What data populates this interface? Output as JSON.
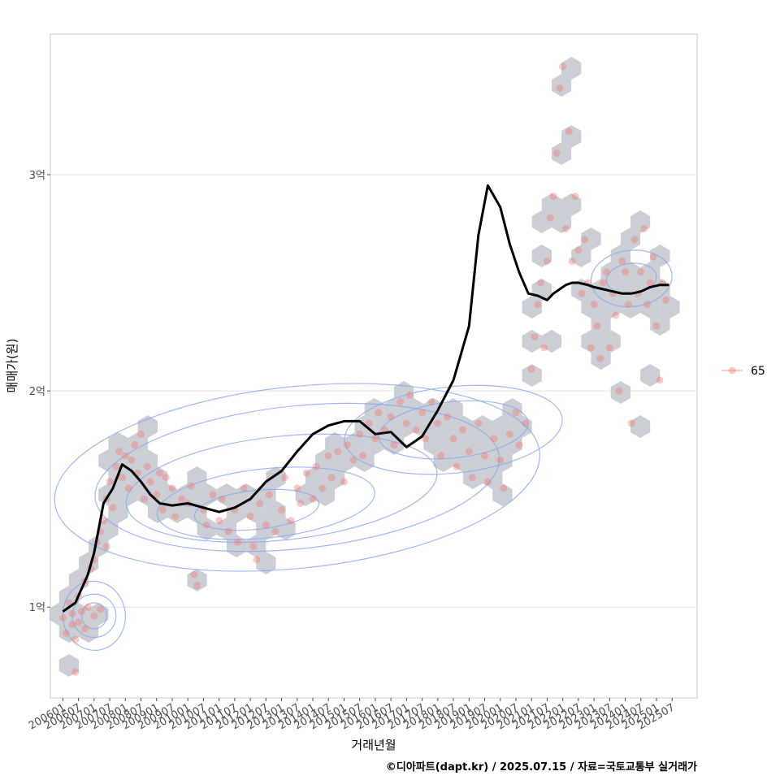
{
  "chart_data": {
    "type": "scatter",
    "title": "",
    "xlabel": "거래년월",
    "ylabel": "매매가(원)",
    "caption": "©디아파트(dapt.kr) / 2025.07.15 / 자료=국토교통부 실거래가",
    "x_tick_labels": [
      "200601",
      "200607",
      "200701",
      "200707",
      "200801",
      "200807",
      "200901",
      "200907",
      "201001",
      "201007",
      "201101",
      "201107",
      "201201",
      "201207",
      "201301",
      "201307",
      "201401",
      "201407",
      "201501",
      "201507",
      "201601",
      "201607",
      "201701",
      "201707",
      "201801",
      "201807",
      "201901",
      "201907",
      "202001",
      "202007",
      "202101",
      "202107",
      "202201",
      "202207",
      "202301",
      "202307",
      "202401",
      "202407",
      "202501",
      "202507"
    ],
    "y_ticks": [
      {
        "value": 1,
        "label": "1억"
      },
      {
        "value": 2,
        "label": "2억"
      },
      {
        "value": 3,
        "label": "3억"
      }
    ],
    "ylim": [
      0.58,
      3.65
    ],
    "xlim": [
      2005.6,
      2026.3
    ],
    "legend": {
      "label": "65",
      "position": "right",
      "color": "#f8766d"
    },
    "colors": {
      "points": "#f8766d",
      "hexbin": "#c5cad0",
      "contour": "#8aa7f0",
      "trend": "#000000",
      "grid": "#e5e5e5",
      "panel_border": "#cccccc"
    },
    "trend_line": {
      "name": "moving-average",
      "x": [
        2006.0,
        2006.4,
        2006.8,
        2007.0,
        2007.3,
        2007.6,
        2007.9,
        2008.2,
        2008.5,
        2008.8,
        2009.1,
        2009.5,
        2010.0,
        2010.5,
        2011.0,
        2011.5,
        2012.0,
        2012.5,
        2013.0,
        2013.5,
        2014.0,
        2014.5,
        2015.0,
        2015.5,
        2016.0,
        2016.5,
        2017.0,
        2017.5,
        2018.0,
        2018.5,
        2019.0,
        2019.3,
        2019.6,
        2020.0,
        2020.3,
        2020.6,
        2020.9,
        2021.2,
        2021.5,
        2021.7,
        2021.9,
        2022.1,
        2022.3,
        2022.5,
        2022.8,
        2023.0,
        2023.3,
        2023.6,
        2023.9,
        2024.2,
        2024.5,
        2024.8,
        2025.1,
        2025.4
      ],
      "y": [
        0.98,
        1.02,
        1.15,
        1.25,
        1.48,
        1.55,
        1.66,
        1.63,
        1.58,
        1.52,
        1.48,
        1.47,
        1.48,
        1.46,
        1.44,
        1.46,
        1.5,
        1.58,
        1.63,
        1.72,
        1.8,
        1.84,
        1.86,
        1.86,
        1.8,
        1.81,
        1.74,
        1.79,
        1.91,
        2.05,
        2.3,
        2.72,
        2.95,
        2.85,
        2.68,
        2.55,
        2.45,
        2.44,
        2.42,
        2.45,
        2.47,
        2.49,
        2.5,
        2.5,
        2.49,
        2.48,
        2.47,
        2.46,
        2.45,
        2.45,
        2.46,
        2.48,
        2.49,
        2.49
      ]
    },
    "series": [
      {
        "name": "65",
        "points": [
          [
            2006.0,
            0.95
          ],
          [
            2006.1,
            0.88
          ],
          [
            2006.2,
            1.02
          ],
          [
            2006.3,
            0.92
          ],
          [
            2006.3,
            0.97
          ],
          [
            2006.4,
            0.85
          ],
          [
            2006.4,
            0.7
          ],
          [
            2006.5,
            1.05
          ],
          [
            2006.5,
            0.93
          ],
          [
            2006.6,
            0.98
          ],
          [
            2006.7,
            1.12
          ],
          [
            2006.7,
            0.9
          ],
          [
            2006.8,
            1.0
          ],
          [
            2006.9,
            1.18
          ],
          [
            2007.0,
            0.96
          ],
          [
            2007.0,
            1.22
          ],
          [
            2007.1,
            1.3
          ],
          [
            2007.2,
            1.35
          ],
          [
            2007.2,
            0.99
          ],
          [
            2007.3,
            1.4
          ],
          [
            2007.4,
            1.5
          ],
          [
            2007.4,
            1.28
          ],
          [
            2007.5,
            1.58
          ],
          [
            2007.6,
            1.46
          ],
          [
            2007.7,
            1.65
          ],
          [
            2007.8,
            1.72
          ],
          [
            2007.9,
            1.6
          ],
          [
            2008.0,
            1.7
          ],
          [
            2008.1,
            1.55
          ],
          [
            2008.2,
            1.68
          ],
          [
            2008.3,
            1.75
          ],
          [
            2008.4,
            1.62
          ],
          [
            2008.5,
            1.8
          ],
          [
            2008.6,
            1.5
          ],
          [
            2008.7,
            1.65
          ],
          [
            2008.8,
            1.58
          ],
          [
            2009.0,
            1.52
          ],
          [
            2009.1,
            1.62
          ],
          [
            2009.2,
            1.45
          ],
          [
            2009.3,
            1.6
          ],
          [
            2009.5,
            1.55
          ],
          [
            2009.6,
            1.42
          ],
          [
            2009.8,
            1.5
          ],
          [
            2010.0,
            1.48
          ],
          [
            2010.1,
            1.56
          ],
          [
            2010.2,
            1.15
          ],
          [
            2010.3,
            1.1
          ],
          [
            2010.5,
            1.45
          ],
          [
            2010.6,
            1.38
          ],
          [
            2010.8,
            1.52
          ],
          [
            2011.0,
            1.4
          ],
          [
            2011.1,
            1.5
          ],
          [
            2011.3,
            1.35
          ],
          [
            2011.5,
            1.45
          ],
          [
            2011.6,
            1.3
          ],
          [
            2011.8,
            1.55
          ],
          [
            2012.0,
            1.42
          ],
          [
            2012.1,
            1.28
          ],
          [
            2012.2,
            1.22
          ],
          [
            2012.3,
            1.48
          ],
          [
            2012.5,
            1.38
          ],
          [
            2012.6,
            1.52
          ],
          [
            2012.8,
            1.35
          ],
          [
            2013.0,
            1.45
          ],
          [
            2013.1,
            1.6
          ],
          [
            2013.3,
            1.4
          ],
          [
            2013.5,
            1.55
          ],
          [
            2013.6,
            1.48
          ],
          [
            2013.8,
            1.62
          ],
          [
            2014.0,
            1.5
          ],
          [
            2014.1,
            1.65
          ],
          [
            2014.3,
            1.55
          ],
          [
            2014.5,
            1.7
          ],
          [
            2014.6,
            1.6
          ],
          [
            2014.8,
            1.72
          ],
          [
            2015.0,
            1.58
          ],
          [
            2015.1,
            1.75
          ],
          [
            2015.3,
            1.68
          ],
          [
            2015.5,
            1.8
          ],
          [
            2015.6,
            1.7
          ],
          [
            2015.8,
            1.85
          ],
          [
            2016.0,
            1.78
          ],
          [
            2016.1,
            1.9
          ],
          [
            2016.3,
            1.82
          ],
          [
            2016.5,
            1.88
          ],
          [
            2016.6,
            1.75
          ],
          [
            2016.8,
            1.95
          ],
          [
            2017.0,
            1.85
          ],
          [
            2017.1,
            1.98
          ],
          [
            2017.3,
            1.82
          ],
          [
            2017.5,
            1.9
          ],
          [
            2017.6,
            1.78
          ],
          [
            2017.8,
            1.95
          ],
          [
            2018.0,
            1.85
          ],
          [
            2018.1,
            1.7
          ],
          [
            2018.3,
            1.88
          ],
          [
            2018.5,
            1.78
          ],
          [
            2018.6,
            1.65
          ],
          [
            2018.8,
            1.82
          ],
          [
            2019.0,
            1.72
          ],
          [
            2019.1,
            1.6
          ],
          [
            2019.3,
            1.85
          ],
          [
            2019.5,
            1.7
          ],
          [
            2019.6,
            1.58
          ],
          [
            2019.8,
            1.78
          ],
          [
            2020.0,
            1.68
          ],
          [
            2020.1,
            1.55
          ],
          [
            2020.3,
            1.8
          ],
          [
            2020.5,
            1.9
          ],
          [
            2020.6,
            1.75
          ],
          [
            2020.8,
            1.85
          ],
          [
            2021.0,
            2.1
          ],
          [
            2021.1,
            2.25
          ],
          [
            2021.2,
            2.4
          ],
          [
            2021.3,
            2.5
          ],
          [
            2021.4,
            2.2
          ],
          [
            2021.5,
            2.6
          ],
          [
            2021.6,
            2.8
          ],
          [
            2021.7,
            2.9
          ],
          [
            2021.8,
            3.1
          ],
          [
            2021.9,
            3.4
          ],
          [
            2022.0,
            3.5
          ],
          [
            2022.1,
            2.75
          ],
          [
            2022.2,
            3.2
          ],
          [
            2022.3,
            2.6
          ],
          [
            2022.4,
            2.9
          ],
          [
            2022.5,
            2.65
          ],
          [
            2022.6,
            2.45
          ],
          [
            2022.7,
            2.7
          ],
          [
            2022.8,
            2.5
          ],
          [
            2022.9,
            2.2
          ],
          [
            2023.0,
            2.4
          ],
          [
            2023.1,
            2.3
          ],
          [
            2023.2,
            2.15
          ],
          [
            2023.3,
            2.5
          ],
          [
            2023.4,
            2.55
          ],
          [
            2023.5,
            2.2
          ],
          [
            2023.6,
            2.45
          ],
          [
            2023.7,
            2.35
          ],
          [
            2023.8,
            2.0
          ],
          [
            2023.9,
            2.6
          ],
          [
            2024.0,
            2.55
          ],
          [
            2024.1,
            2.4
          ],
          [
            2024.2,
            1.85
          ],
          [
            2024.3,
            2.7
          ],
          [
            2024.4,
            2.45
          ],
          [
            2024.5,
            2.55
          ],
          [
            2024.6,
            2.75
          ],
          [
            2024.7,
            2.4
          ],
          [
            2024.8,
            2.5
          ],
          [
            2024.9,
            2.62
          ],
          [
            2025.0,
            2.3
          ],
          [
            2025.1,
            2.05
          ],
          [
            2025.2,
            2.5
          ],
          [
            2025.3,
            2.42
          ]
        ]
      }
    ]
  }
}
